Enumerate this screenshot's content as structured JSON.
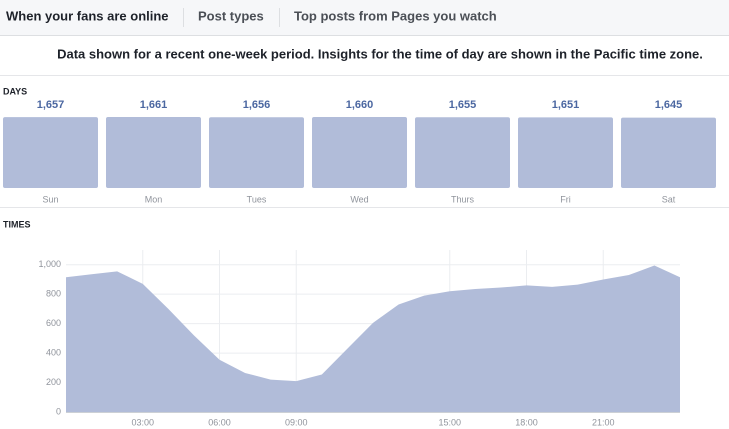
{
  "tabs": [
    "When your fans are online",
    "Post types",
    "Top posts from Pages you watch"
  ],
  "notice": "Data shown for a recent one-week period. Insights for the time of day are shown in the Pacific time zone.",
  "chart_data": [
    {
      "type": "bar",
      "title": "DAYS",
      "categories": [
        "Sun",
        "Mon",
        "Tues",
        "Wed",
        "Thurs",
        "Fri",
        "Sat"
      ],
      "values": [
        1657,
        1661,
        1656,
        1660,
        1655,
        1651,
        1645
      ],
      "value_labels": [
        "1,657",
        "1,661",
        "1,656",
        "1,660",
        "1,655",
        "1,651",
        "1,645"
      ],
      "color": "#b1bcd9"
    },
    {
      "type": "area",
      "title": "TIMES",
      "x": [
        0,
        1,
        2,
        3,
        4,
        5,
        6,
        7,
        8,
        9,
        10,
        11,
        12,
        13,
        14,
        15,
        16,
        17,
        18,
        19,
        20,
        21,
        22,
        23,
        24
      ],
      "values": [
        915,
        935,
        955,
        870,
        700,
        520,
        355,
        265,
        220,
        210,
        255,
        430,
        605,
        730,
        790,
        820,
        835,
        845,
        860,
        850,
        865,
        900,
        930,
        995,
        915
      ],
      "xlim": [
        0,
        24
      ],
      "ylim": [
        0,
        1100
      ],
      "xticks": [
        {
          "value": 3,
          "label": "03:00"
        },
        {
          "value": 6,
          "label": "06:00"
        },
        {
          "value": 9,
          "label": "09:00"
        },
        {
          "value": 15,
          "label": "15:00"
        },
        {
          "value": 18,
          "label": "18:00"
        },
        {
          "value": 21,
          "label": "21:00"
        }
      ],
      "yticks": [
        0,
        200,
        400,
        600,
        800,
        {
          "value": 1000,
          "label": "1,000"
        }
      ],
      "color": "#b1bcd9",
      "grid": true
    }
  ]
}
